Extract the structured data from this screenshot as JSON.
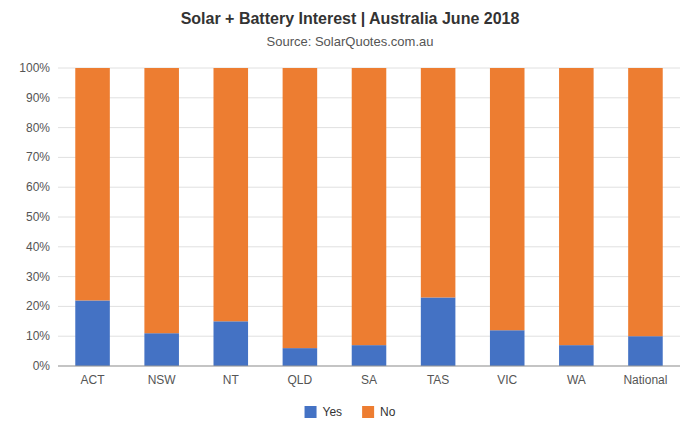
{
  "chart_data": {
    "type": "bar",
    "stacked": true,
    "title": "Solar + Battery Interest  |  Australia June 2018",
    "subtitle": "Source: SolarQuotes.com.au",
    "categories": [
      "ACT",
      "NSW",
      "NT",
      "QLD",
      "SA",
      "TAS",
      "VIC",
      "WA",
      "National"
    ],
    "series": [
      {
        "name": "Yes",
        "color": "#4472C4",
        "values": [
          22,
          11,
          15,
          6,
          7,
          23,
          12,
          7,
          10
        ]
      },
      {
        "name": "No",
        "color": "#ED7D31",
        "values": [
          78,
          89,
          85,
          94,
          93,
          77,
          88,
          93,
          90
        ]
      }
    ],
    "ylim": [
      0,
      100
    ],
    "yticks": [
      {
        "value": 0,
        "label": "0%"
      },
      {
        "value": 10,
        "label": "10%"
      },
      {
        "value": 20,
        "label": "20%"
      },
      {
        "value": 30,
        "label": "30%"
      },
      {
        "value": 40,
        "label": "40%"
      },
      {
        "value": 50,
        "label": "50%"
      },
      {
        "value": 60,
        "label": "60%"
      },
      {
        "value": 70,
        "label": "70%"
      },
      {
        "value": 80,
        "label": "80%"
      },
      {
        "value": 90,
        "label": "90%"
      },
      {
        "value": 100,
        "label": "100%"
      }
    ],
    "grid": true,
    "legend": "bottom"
  }
}
